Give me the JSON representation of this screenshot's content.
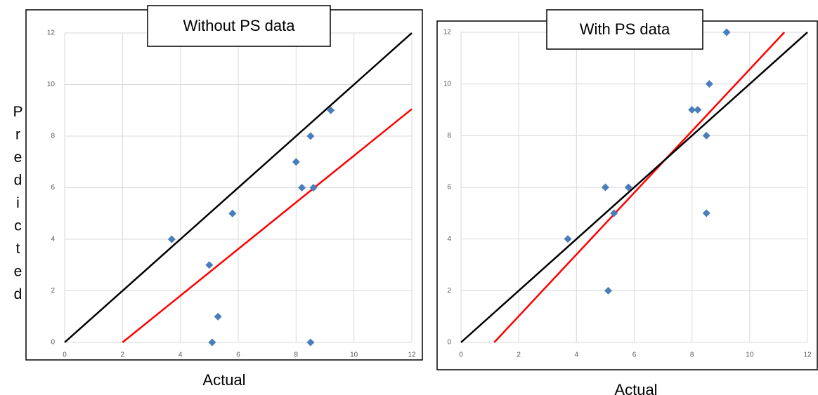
{
  "chart_data": [
    {
      "type": "scatter",
      "title": "Without PS data",
      "xlabel": "Actual",
      "ylabel": "Predicted",
      "xlim": [
        0,
        12
      ],
      "ylim": [
        0,
        12
      ],
      "xticks": [
        0,
        2,
        4,
        6,
        8,
        10,
        12
      ],
      "yticks": [
        0,
        2,
        4,
        6,
        8,
        10,
        12
      ],
      "grid": true,
      "series": [
        {
          "type": "scatter",
          "marker": "diamond",
          "color": "#4a7ebb",
          "x": [
            3.7,
            5,
            5.3,
            5.1,
            5.8,
            8,
            8.2,
            8.6,
            8.5,
            9.2,
            8.5
          ],
          "values": [
            4,
            3,
            1,
            0,
            5,
            7,
            6,
            6,
            8,
            9,
            0
          ]
        },
        {
          "type": "line",
          "color": "#000000",
          "x": [
            0,
            12
          ],
          "values": [
            0,
            12
          ]
        },
        {
          "type": "line",
          "color": "#ff0000",
          "x": [
            2,
            12
          ],
          "values": [
            0,
            9.05
          ]
        }
      ]
    },
    {
      "type": "scatter",
      "title": "With PS data",
      "xlabel": "Actual",
      "xlim": [
        0,
        12
      ],
      "ylim": [
        0,
        12
      ],
      "xticks": [
        0,
        2,
        4,
        6,
        8,
        10,
        12
      ],
      "yticks": [
        0,
        2,
        4,
        6,
        8,
        10,
        12
      ],
      "grid": true,
      "series": [
        {
          "type": "scatter",
          "marker": "diamond",
          "color": "#4a7ebb",
          "x": [
            3.7,
            5,
            5.3,
            5.1,
            5.8,
            8,
            8.2,
            8.6,
            8.5,
            8.5,
            9.2
          ],
          "values": [
            4,
            6,
            5,
            2,
            6,
            9,
            9,
            10,
            8,
            5,
            12
          ]
        },
        {
          "type": "line",
          "color": "#ff0000",
          "x": [
            1.15,
            11.2
          ],
          "values": [
            0,
            12
          ]
        },
        {
          "type": "line",
          "color": "#000000",
          "x": [
            0,
            12
          ],
          "values": [
            0,
            12
          ]
        }
      ]
    }
  ]
}
